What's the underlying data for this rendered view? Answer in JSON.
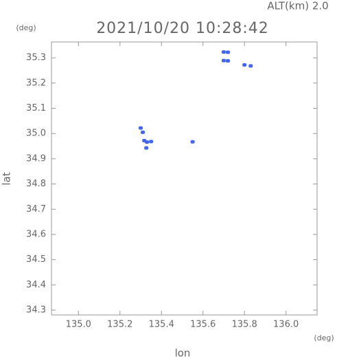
{
  "chart_data": {
    "type": "scatter",
    "altitude_text": "ALT(km)  2.0",
    "title": "2021/10/20 10:28:42",
    "y_unit": "(deg)",
    "x_unit": "(deg)",
    "xlabel": "lon",
    "ylabel": "lat",
    "color": "#4466ee",
    "xlim": [
      134.87,
      136.15
    ],
    "ylim": [
      34.281,
      35.363
    ],
    "xticks": [
      {
        "value": 135.0,
        "label": "135.0"
      },
      {
        "value": 135.2,
        "label": "135.2"
      },
      {
        "value": 135.4,
        "label": "135.4"
      },
      {
        "value": 135.6,
        "label": "135.6"
      },
      {
        "value": 135.8,
        "label": "135.8"
      },
      {
        "value": 136.0,
        "label": "136.0"
      }
    ],
    "yticks": [
      34.3,
      34.4,
      34.5,
      34.6,
      34.7,
      34.8,
      34.9,
      {
        "value": 35.0,
        "label": "35.0"
      },
      35.1,
      35.2,
      35.3
    ],
    "x": [
      135.7,
      135.72,
      135.7,
      135.72,
      135.8,
      135.83,
      135.317,
      135.33,
      135.35,
      135.3,
      135.327,
      135.31,
      135.55
    ],
    "values": [
      35.323,
      35.322,
      35.289,
      35.288,
      35.272,
      35.268,
      34.972,
      34.966,
      34.968,
      35.022,
      34.943,
      35.005,
      34.967
    ]
  }
}
